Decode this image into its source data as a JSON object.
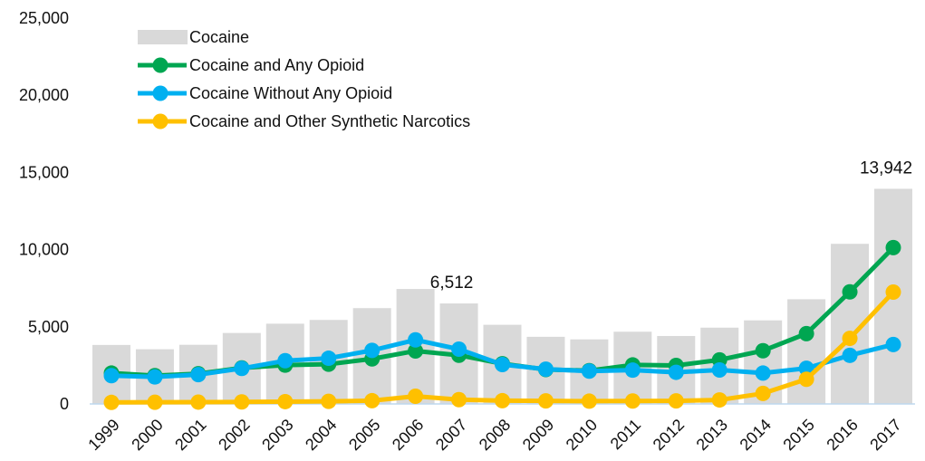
{
  "chart_data": {
    "type": "bar",
    "categories": [
      "1999",
      "2000",
      "2001",
      "2002",
      "2003",
      "2004",
      "2005",
      "2006",
      "2007",
      "2008",
      "2009",
      "2010",
      "2011",
      "2012",
      "2013",
      "2014",
      "2015",
      "2016",
      "2017"
    ],
    "bar_series": {
      "name": "Cocaine",
      "color": "#d9d9d9",
      "values": [
        3822,
        3544,
        3833,
        4599,
        5199,
        5443,
        6208,
        7448,
        6512,
        5129,
        4350,
        4183,
        4681,
        4404,
        4944,
        5415,
        6784,
        10375,
        13942
      ]
    },
    "series": [
      {
        "name": "Cocaine and Any Opioid",
        "type": "line",
        "color": "#00a651",
        "values": [
          1999,
          1836,
          1960,
          2333,
          2513,
          2575,
          2919,
          3435,
          3156,
          2607,
          2232,
          2160,
          2528,
          2493,
          2855,
          3450,
          4557,
          7263,
          10131
        ]
      },
      {
        "name": "Cocaine Without Any Opioid",
        "type": "line",
        "color": "#00b0f0",
        "values": [
          1835,
          1750,
          1900,
          2300,
          2800,
          2960,
          3470,
          4150,
          3550,
          2550,
          2250,
          2125,
          2190,
          2050,
          2200,
          2000,
          2310,
          3150,
          3850
        ]
      },
      {
        "name": "Cocaine and Other Synthetic Narcotics",
        "type": "line",
        "color": "#ffc000",
        "values": [
          100,
          110,
          120,
          130,
          150,
          170,
          210,
          500,
          280,
          210,
          200,
          180,
          190,
          200,
          260,
          680,
          1600,
          4250,
          7250
        ]
      }
    ],
    "data_labels": [
      {
        "category": "2007",
        "text": "6,512"
      },
      {
        "category": "2017",
        "text": "13,942"
      }
    ],
    "y_ticks": [
      "0",
      "5,000",
      "10,000",
      "15,000",
      "20,000",
      "25,000"
    ],
    "ylim": [
      0,
      25000
    ],
    "grid": false,
    "legend_position": "top-left"
  }
}
